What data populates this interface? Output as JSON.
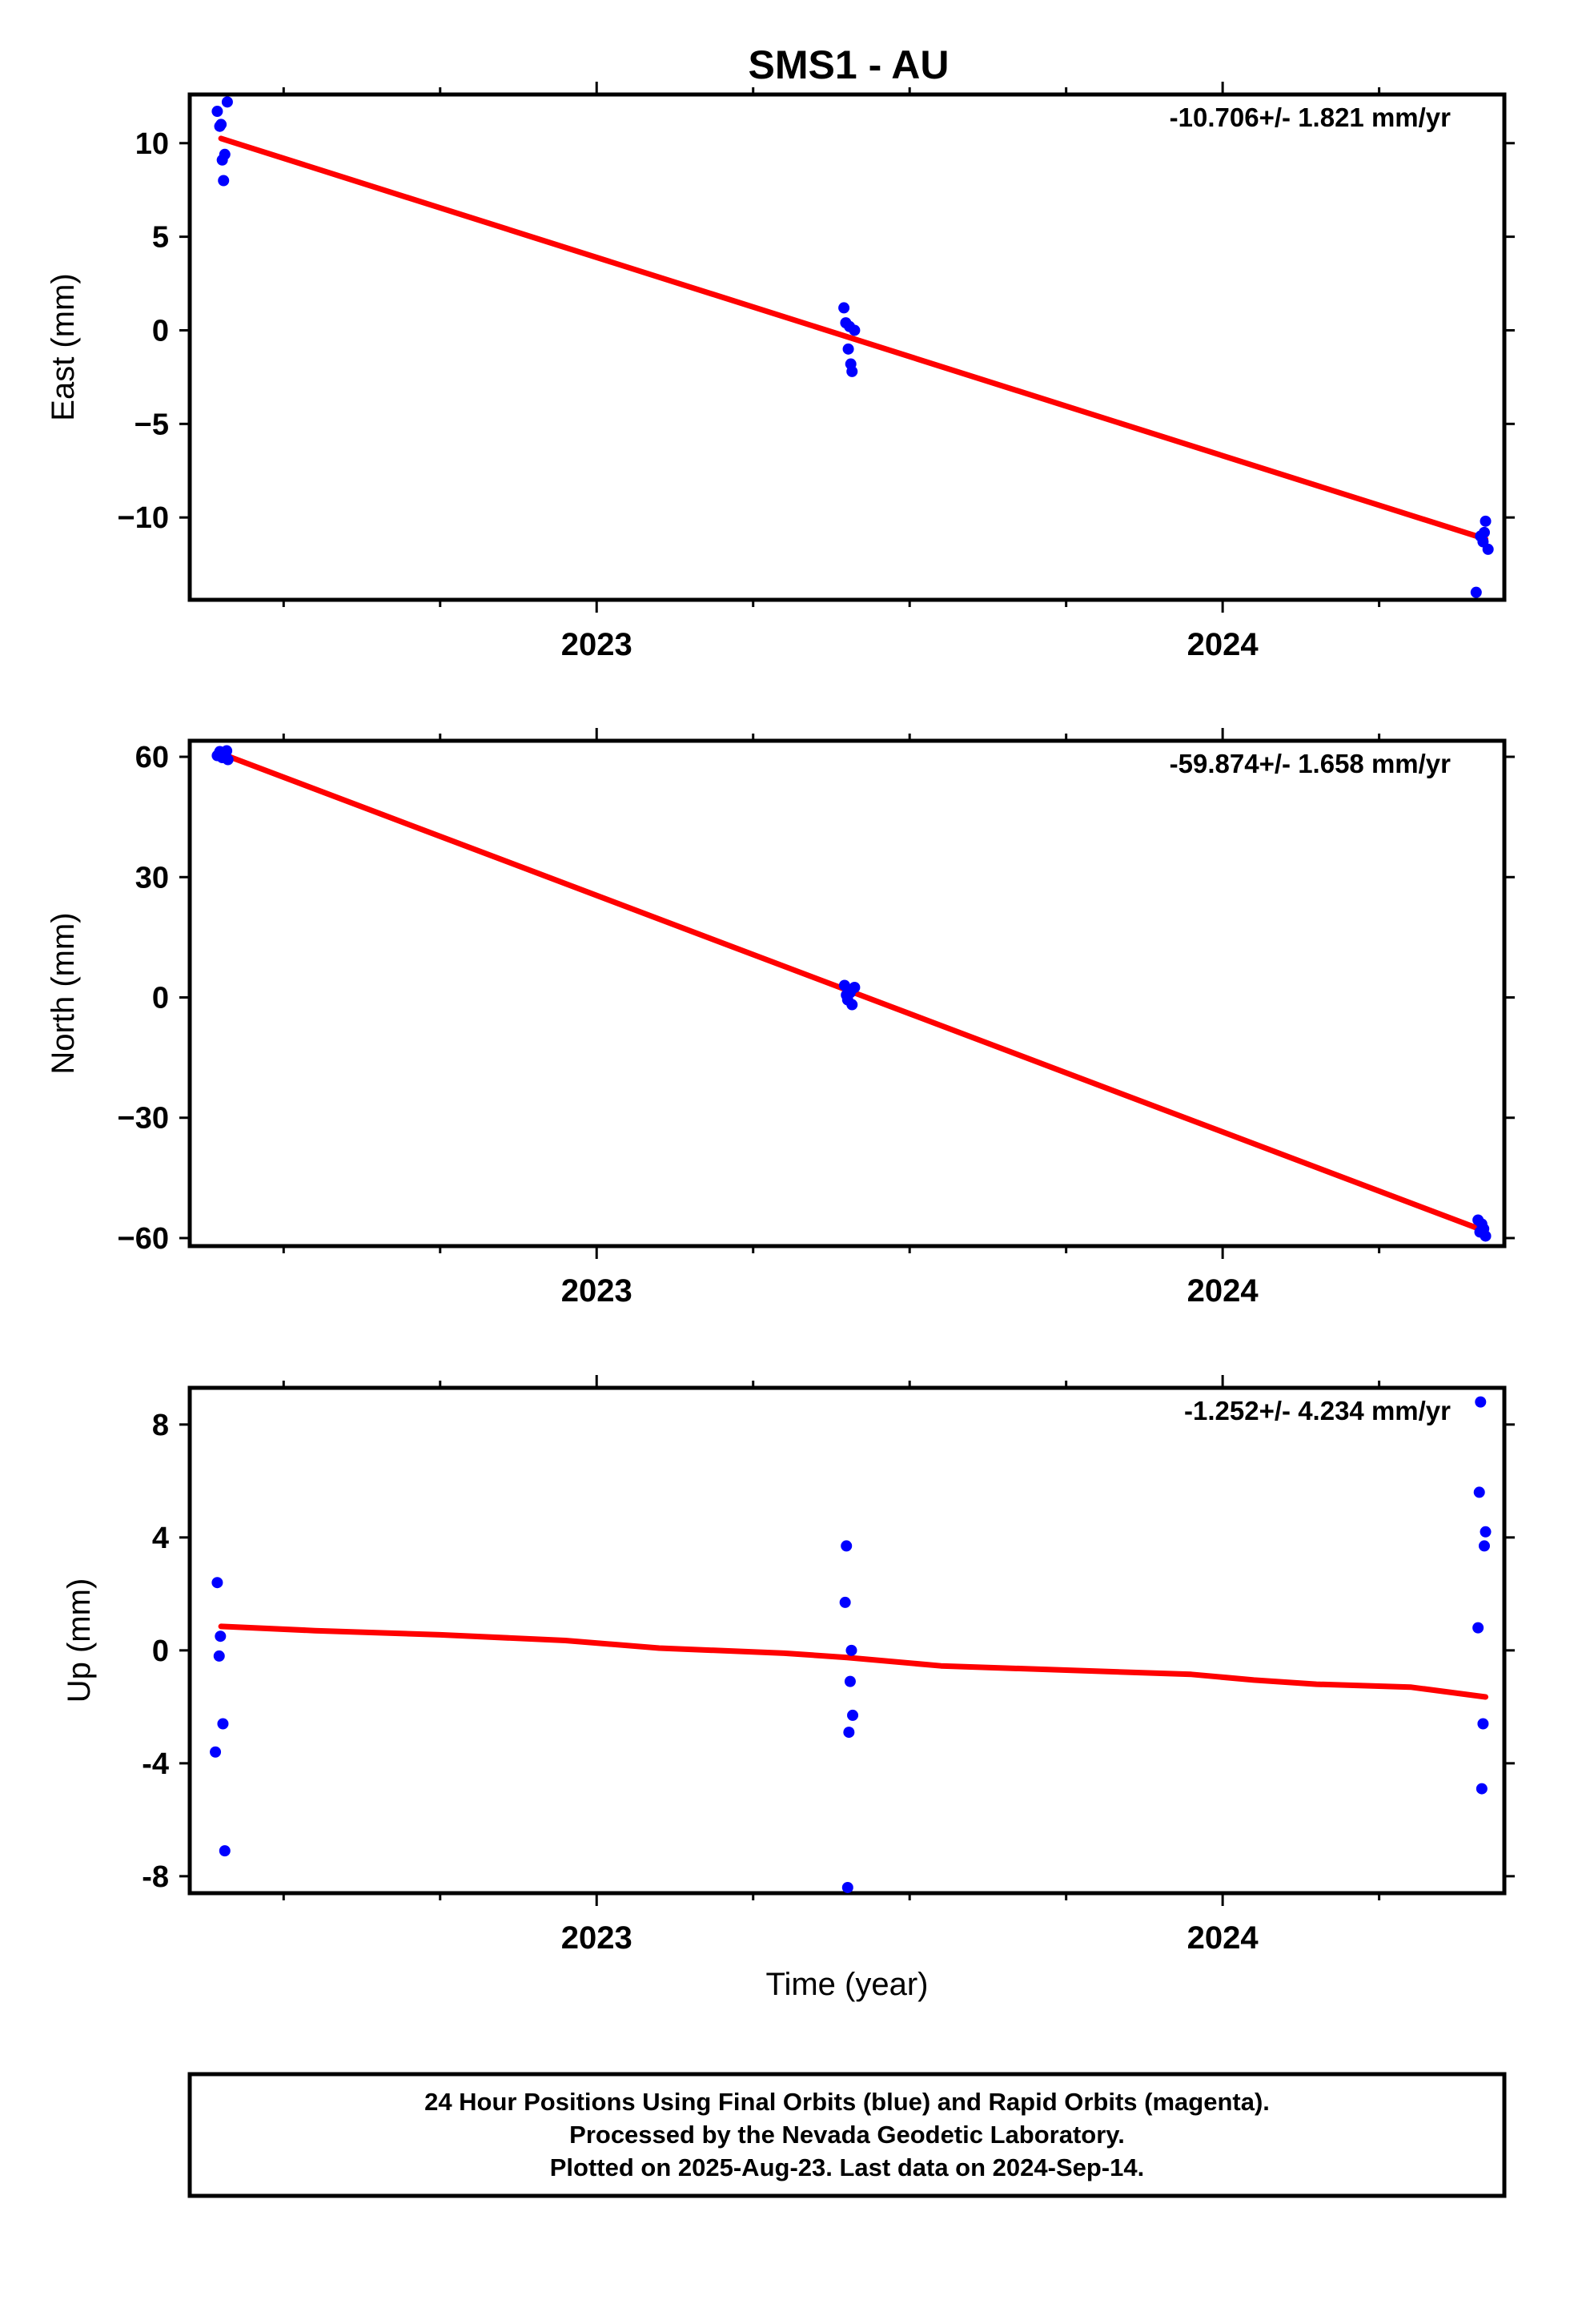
{
  "title": "SMS1 - AU",
  "footer": {
    "lines": [
      "24 Hour Positions Using Final Orbits (blue) and Rapid Orbits (magenta).",
      "Processed by the Nevada Geodetic Laboratory.",
      "Plotted on 2025-Aug-23. Last data on 2024-Sep-14."
    ]
  },
  "colors": {
    "points": "#0000ff",
    "fit": "#ff0000",
    "frame": "#000000"
  },
  "chart_data": [
    {
      "type": "scatter",
      "ylabel": "East (mm)",
      "xlabel": "",
      "xlim": [
        2022.35,
        2024.45
      ],
      "ylim": [
        -14.4,
        12.6
      ],
      "yticks": [
        10,
        5,
        0,
        -5,
        -10
      ],
      "ytick_labels": [
        "10",
        "5",
        "0",
        "−5",
        "−10"
      ],
      "xticks_major": [
        2023,
        2024
      ],
      "xticks_minor": [
        2022.5,
        2022.75,
        2023.25,
        2023.5,
        2023.75,
        2024.25
      ],
      "rate_label": "-10.706+/- 1.821 mm/yr",
      "points": [
        [
          2022.394,
          11.7
        ],
        [
          2022.398,
          10.9
        ],
        [
          2022.4,
          11.0
        ],
        [
          2022.402,
          9.1
        ],
        [
          2022.404,
          8.0
        ],
        [
          2022.406,
          9.4
        ],
        [
          2022.41,
          12.2
        ],
        [
          2023.395,
          1.2
        ],
        [
          2023.398,
          0.4
        ],
        [
          2023.402,
          -1.0
        ],
        [
          2023.404,
          0.2
        ],
        [
          2023.406,
          -1.8
        ],
        [
          2023.408,
          -2.2
        ],
        [
          2023.412,
          0.0
        ],
        [
          2024.405,
          -14.0
        ],
        [
          2024.412,
          -11.0
        ],
        [
          2024.416,
          -11.3
        ],
        [
          2024.418,
          -10.8
        ],
        [
          2024.42,
          -10.2
        ],
        [
          2024.424,
          -11.7
        ]
      ],
      "fit": [
        [
          2022.4,
          10.25
        ],
        [
          2024.42,
          -11.15
        ]
      ]
    },
    {
      "type": "scatter",
      "ylabel": "North (mm)",
      "xlabel": "",
      "xlim": [
        2022.35,
        2024.45
      ],
      "ylim": [
        -62,
        64
      ],
      "yticks": [
        60,
        30,
        0,
        -30,
        -60
      ],
      "ytick_labels": [
        "60",
        "30",
        "0",
        "−30",
        "−60"
      ],
      "xticks_major": [
        2023,
        2024
      ],
      "xticks_minor": [
        2022.5,
        2022.75,
        2023.25,
        2023.5,
        2023.75,
        2024.25
      ],
      "rate_label": "-59.874+/- 1.658 mm/yr",
      "points": [
        [
          2022.394,
          60.3
        ],
        [
          2022.398,
          61.3
        ],
        [
          2022.402,
          59.8
        ],
        [
          2022.406,
          60.8
        ],
        [
          2022.409,
          61.5
        ],
        [
          2022.411,
          59.3
        ],
        [
          2023.396,
          3.0
        ],
        [
          2023.399,
          0.6
        ],
        [
          2023.401,
          -0.6
        ],
        [
          2023.405,
          1.2
        ],
        [
          2023.408,
          -1.8
        ],
        [
          2023.412,
          2.5
        ],
        [
          2024.408,
          -55.5
        ],
        [
          2024.411,
          -58.5
        ],
        [
          2024.414,
          -56.5
        ],
        [
          2024.417,
          -57.7
        ],
        [
          2024.42,
          -59.5
        ]
      ],
      "fit": [
        [
          2022.4,
          60.8
        ],
        [
          2024.42,
          -58.3
        ]
      ]
    },
    {
      "type": "scatter",
      "ylabel": "Up (mm)",
      "xlabel": "Time (year)",
      "xlim": [
        2022.35,
        2024.45
      ],
      "ylim": [
        -8.6,
        9.3
      ],
      "yticks": [
        8,
        4,
        0,
        -4,
        -8
      ],
      "ytick_labels": [
        "8",
        "4",
        "0",
        "-4",
        "-8"
      ],
      "xticks_major": [
        2023,
        2024
      ],
      "xticks_minor": [
        2022.5,
        2022.75,
        2023.25,
        2023.5,
        2023.75,
        2024.25
      ],
      "rate_label": "-1.252+/- 4.234 mm/yr",
      "points": [
        [
          2022.391,
          -3.6
        ],
        [
          2022.394,
          2.4
        ],
        [
          2022.397,
          -0.2
        ],
        [
          2022.399,
          0.5
        ],
        [
          2022.403,
          -2.6
        ],
        [
          2022.406,
          -7.1
        ],
        [
          2023.397,
          1.7
        ],
        [
          2023.399,
          3.7
        ],
        [
          2023.401,
          -8.4
        ],
        [
          2023.403,
          -2.9
        ],
        [
          2023.405,
          -1.1
        ],
        [
          2023.407,
          0.0
        ],
        [
          2023.409,
          -2.3
        ],
        [
          2024.408,
          0.8
        ],
        [
          2024.41,
          5.6
        ],
        [
          2024.412,
          8.8
        ],
        [
          2024.414,
          -4.9
        ],
        [
          2024.416,
          -2.6
        ],
        [
          2024.418,
          3.7
        ],
        [
          2024.42,
          4.2
        ]
      ],
      "fit": [
        [
          2022.4,
          0.85
        ],
        [
          2022.55,
          0.7
        ],
        [
          2022.75,
          0.55
        ],
        [
          2022.95,
          0.35
        ],
        [
          2023.1,
          0.08
        ],
        [
          2023.3,
          -0.1
        ],
        [
          2023.4,
          -0.25
        ],
        [
          2023.55,
          -0.55
        ],
        [
          2023.75,
          -0.7
        ],
        [
          2023.95,
          -0.85
        ],
        [
          2024.05,
          -1.05
        ],
        [
          2024.15,
          -1.2
        ],
        [
          2024.3,
          -1.3
        ],
        [
          2024.42,
          -1.65
        ]
      ]
    }
  ]
}
